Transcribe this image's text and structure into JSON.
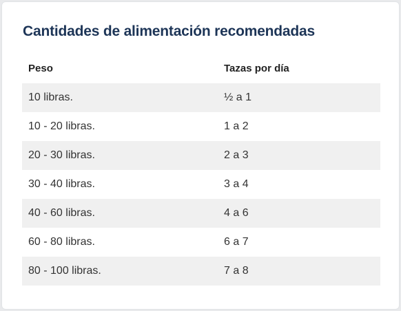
{
  "card": {
    "title": "Cantidades de alimentación recomendadas"
  },
  "table": {
    "headers": [
      "Peso",
      "Tazas por día"
    ],
    "rows": [
      [
        "10 libras.",
        "½ a 1"
      ],
      [
        "10 - 20 libras.",
        "1 a 2"
      ],
      [
        "20 - 30 libras.",
        "2 a 3"
      ],
      [
        "30 - 40 libras.",
        "3 a 4"
      ],
      [
        "40 - 60 libras.",
        "4 a 6"
      ],
      [
        "60 - 80 libras.",
        "6 a 7"
      ],
      [
        "80 - 100 libras.",
        "7 a 8"
      ]
    ]
  },
  "colors": {
    "title": "#1d3557",
    "stripe": "#f0f0f0",
    "text": "#333333"
  }
}
